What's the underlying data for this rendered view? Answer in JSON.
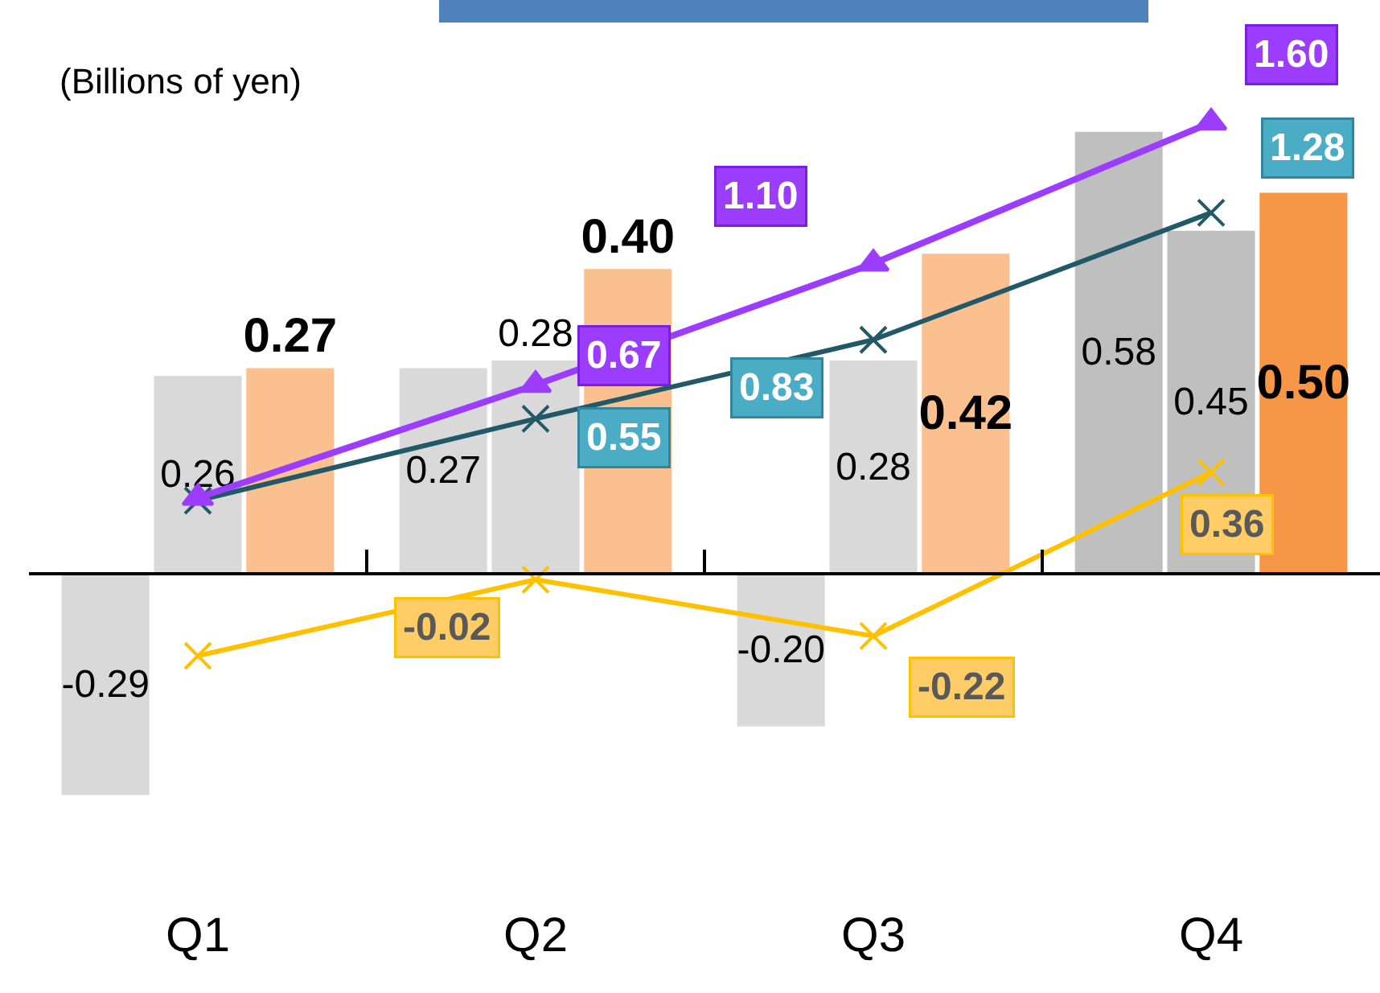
{
  "chart_data": {
    "type": "bar",
    "categories": [
      "Q1",
      "Q2",
      "Q3",
      "Q4"
    ],
    "annotations": [
      "(Billions of yen)"
    ],
    "tick_labels": "x",
    "series": [
      {
        "colors": [
          "#d9d9d9",
          "#d9d9d9",
          "#d9d9d9",
          "#bfbfbf"
        ],
        "values": [
          -0.29,
          0.27,
          -0.2,
          0.58
        ],
        "value_labels": [
          "-0.29",
          "0.27",
          "-0.20",
          "0.58"
        ]
      },
      {
        "colors": [
          "#d9d9d9",
          "#d9d9d9",
          "#d9d9d9",
          "#bfbfbf"
        ],
        "values": [
          0.26,
          0.28,
          0.28,
          0.45
        ],
        "value_labels": [
          "0.26",
          "0.28",
          "0.28",
          "0.45"
        ]
      },
      {
        "colors": [
          "#fac090",
          "#fac090",
          "#fac090",
          "#f79646"
        ],
        "values": [
          0.27,
          0.4,
          0.42,
          0.5
        ],
        "value_labels": [
          "0.27",
          "0.40",
          "0.42",
          "0.50"
        ]
      },
      {
        "type": "line",
        "axis": "y2",
        "color": "#ffc000",
        "marker": "cross",
        "values": [
          -0.29,
          -0.02,
          -0.22,
          0.36
        ],
        "value_labels": [
          null,
          "-0.02",
          "-0.22",
          "0.36"
        ]
      },
      {
        "type": "line",
        "axis": "y2",
        "color": "#215968",
        "marker": "cross",
        "values": [
          0.26,
          0.55,
          0.83,
          1.28
        ],
        "value_labels": [
          null,
          "0.55",
          "0.83",
          "1.28"
        ]
      },
      {
        "type": "line",
        "axis": "y2",
        "color": "#9b3cff",
        "marker": "triangle",
        "values": [
          0.27,
          0.67,
          1.1,
          1.6
        ],
        "value_labels": [
          null,
          "0.67",
          "1.10",
          "1.60"
        ]
      }
    ]
  }
}
